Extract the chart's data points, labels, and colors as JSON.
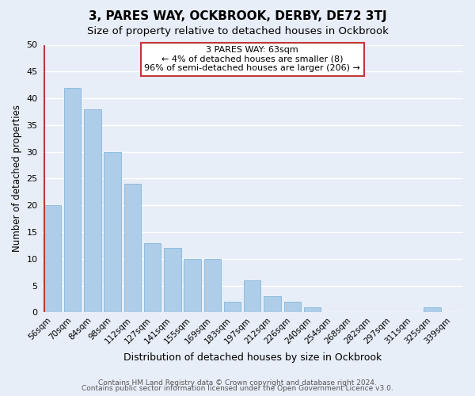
{
  "title": "3, PARES WAY, OCKBROOK, DERBY, DE72 3TJ",
  "subtitle": "Size of property relative to detached houses in Ockbrook",
  "xlabel": "Distribution of detached houses by size in Ockbrook",
  "ylabel": "Number of detached properties",
  "bin_labels": [
    "56sqm",
    "70sqm",
    "84sqm",
    "98sqm",
    "112sqm",
    "127sqm",
    "141sqm",
    "155sqm",
    "169sqm",
    "183sqm",
    "197sqm",
    "212sqm",
    "226sqm",
    "240sqm",
    "254sqm",
    "268sqm",
    "282sqm",
    "297sqm",
    "311sqm",
    "325sqm",
    "339sqm"
  ],
  "bar_values": [
    20,
    42,
    38,
    30,
    24,
    13,
    12,
    10,
    10,
    2,
    6,
    3,
    2,
    1,
    0,
    0,
    0,
    0,
    0,
    1,
    0
  ],
  "bar_color": "#aecde8",
  "bar_edge_color": "#7aafd4",
  "highlight_color": "#c0373a",
  "annotation_title": "3 PARES WAY: 63sqm",
  "annotation_line1": "← 4% of detached houses are smaller (8)",
  "annotation_line2": "96% of semi-detached houses are larger (206) →",
  "annotation_box_color": "#ffffff",
  "annotation_border_color": "#c0373a",
  "ylim": [
    0,
    50
  ],
  "yticks": [
    0,
    5,
    10,
    15,
    20,
    25,
    30,
    35,
    40,
    45,
    50
  ],
  "footnote1": "Contains HM Land Registry data © Crown copyright and database right 2024.",
  "footnote2": "Contains public sector information licensed under the Open Government Licence v3.0.",
  "bg_color": "#e8eef8",
  "plot_bg_color": "#e8eef8",
  "grid_color": "#ffffff",
  "title_fontsize": 11,
  "subtitle_fontsize": 9.5,
  "ylabel_fontsize": 8.5,
  "xlabel_fontsize": 9,
  "tick_fontsize": 8,
  "xtick_fontsize": 7.5,
  "footnote_fontsize": 6.5
}
